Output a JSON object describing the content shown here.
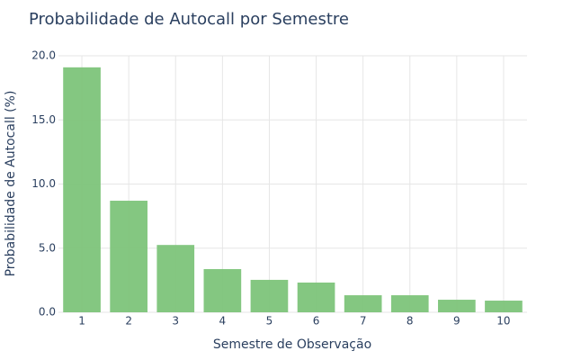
{
  "chart_data": {
    "type": "bar",
    "title": "Probabilidade de Autocall por Semestre",
    "x_label": "Semestre de Observação",
    "y_label": "Probabilidade de Autocall (%)",
    "categories": [
      "1",
      "2",
      "3",
      "4",
      "5",
      "6",
      "7",
      "8",
      "9",
      "10"
    ],
    "values": [
      19.1,
      8.7,
      5.25,
      3.37,
      2.53,
      2.32,
      1.33,
      1.33,
      0.98,
      0.91
    ],
    "color": "#7dc47a",
    "ylim": [
      0,
      20
    ],
    "yticks": [
      {
        "value": 0,
        "label": "0.0"
      },
      {
        "value": 5,
        "label": "5.0"
      },
      {
        "value": 10,
        "label": "10.0"
      },
      {
        "value": 15,
        "label": "15.0"
      },
      {
        "value": 20,
        "label": "20.0"
      }
    ],
    "grid": true
  }
}
